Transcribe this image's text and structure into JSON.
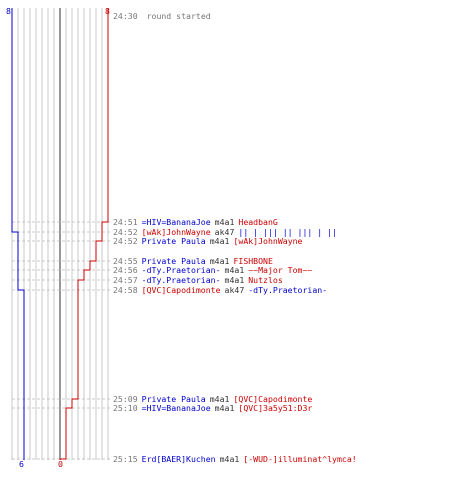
{
  "colors": {
    "blue": "#0000cc",
    "red": "#cc0000",
    "time": "#777777",
    "weapon": "#333333",
    "grid": "#bbbbbb",
    "center": "#555555"
  },
  "teams": {
    "blue": {
      "start_count": "8",
      "end_count": "6"
    },
    "red": {
      "start_count": "8",
      "end_count": "0"
    }
  },
  "header": {
    "time": "24:30",
    "message": "round started"
  },
  "events": [
    {
      "time": "24:51",
      "killer": "=HIV=BananaJoe",
      "killer_team": "blue",
      "weapon": "m4a1",
      "victim": "HeadbanG",
      "victim_team": "red"
    },
    {
      "time": "24:52",
      "killer": "[wAk]JohnWayne",
      "killer_team": "red",
      "weapon": "ak47",
      "victim": "|| | ||| || ||| | ||",
      "victim_team": "blue"
    },
    {
      "time": "24:52",
      "killer": "Private Paula",
      "killer_team": "blue",
      "weapon": "m4a1",
      "victim": "[wAk]JohnWayne",
      "victim_team": "red"
    },
    {
      "time": "24:55",
      "killer": "Private Paula",
      "killer_team": "blue",
      "weapon": "m4a1",
      "victim": "FISHBONE",
      "victim_team": "red"
    },
    {
      "time": "24:56",
      "killer": "-dTy.Praetorian-",
      "killer_team": "blue",
      "weapon": "m4a1",
      "victim": "~~Major Tom~~",
      "victim_team": "red"
    },
    {
      "time": "24:57",
      "killer": "-dTy.Praetorian-",
      "killer_team": "blue",
      "weapon": "m4a1",
      "victim": "Nutzlos",
      "victim_team": "red"
    },
    {
      "time": "24:58",
      "killer": "[QVC]Capodimonte",
      "killer_team": "red",
      "weapon": "ak47",
      "victim": "-dTy.Praetorian-",
      "victim_team": "blue"
    },
    {
      "time": "25:09",
      "killer": "Private Paula",
      "killer_team": "blue",
      "weapon": "m4a1",
      "victim": "[QVC]Capodimonte",
      "victim_team": "red"
    },
    {
      "time": "25:10",
      "killer": "=HIV=BananaJoe",
      "killer_team": "blue",
      "weapon": "m4a1",
      "victim": "[QVC]3a5y51:D3r",
      "victim_team": "red"
    },
    {
      "time": "25:15",
      "killer": "Erd[BAER]Kuchen",
      "killer_team": "blue",
      "weapon": "m4a1",
      "victim": "[-WUD-]illuminat^lymca!",
      "victim_team": "red"
    }
  ]
}
